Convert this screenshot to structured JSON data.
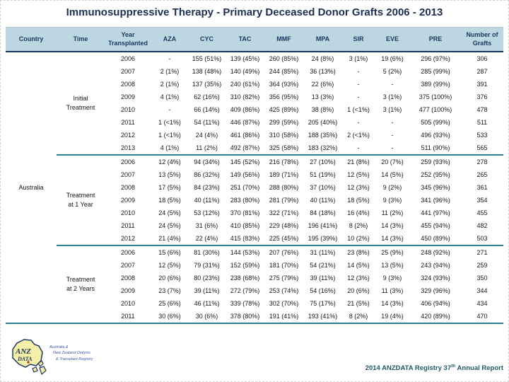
{
  "slide": {
    "title": "Immunosuppressive Therapy - Primary Deceased Donor Grafts 2006 - 2013"
  },
  "table": {
    "columns": [
      "Country",
      "Time",
      "Year Transplanted",
      "AZA",
      "CYC",
      "TAC",
      "MMF",
      "MPA",
      "SIR",
      "EVE",
      "PRE",
      "Number of Grafts"
    ],
    "country": "Australia",
    "sections": [
      {
        "time_lines": [
          "Initial",
          "Treatment"
        ],
        "rows": [
          [
            "2006",
            "-",
            "155 (51%)",
            "139 (45%)",
            "260 (85%)",
            "24 (8%)",
            "3 (1%)",
            "19 (6%)",
            "296 (97%)",
            "306"
          ],
          [
            "2007",
            "2 (1%)",
            "138 (48%)",
            "140 (49%)",
            "244 (85%)",
            "36 (13%)",
            "-",
            "5 (2%)",
            "285 (99%)",
            "287"
          ],
          [
            "2008",
            "2 (1%)",
            "137 (35%)",
            "240 (61%)",
            "364 (93%)",
            "22 (6%)",
            "-",
            "-",
            "389 (99%)",
            "391"
          ],
          [
            "2009",
            "4 (1%)",
            "62 (16%)",
            "310 (82%)",
            "356 (95%)",
            "13 (3%)",
            "-",
            "3 (1%)",
            "375 (100%)",
            "376"
          ],
          [
            "2010",
            "-",
            "66 (14%)",
            "409 (86%)",
            "425 (89%)",
            "38 (8%)",
            "1 (<1%)",
            "3 (1%)",
            "477 (100%)",
            "478"
          ],
          [
            "2011",
            "1 (<1%)",
            "54 (11%)",
            "446 (87%)",
            "299 (59%)",
            "205 (40%)",
            "-",
            "-",
            "505 (99%)",
            "511"
          ],
          [
            "2012",
            "1 (<1%)",
            "24 (4%)",
            "461 (86%)",
            "310 (58%)",
            "188 (35%)",
            "2 (<1%)",
            "-",
            "496 (93%)",
            "533"
          ],
          [
            "2013",
            "4 (1%)",
            "11 (2%)",
            "492 (87%)",
            "325 (58%)",
            "183 (32%)",
            "-",
            "-",
            "511 (90%)",
            "565"
          ]
        ]
      },
      {
        "time_lines": [
          "Treatment",
          "at 1 Year"
        ],
        "rows": [
          [
            "2006",
            "12 (4%)",
            "94 (34%)",
            "145 (52%)",
            "216 (78%)",
            "27 (10%)",
            "21 (8%)",
            "20 (7%)",
            "259 (93%)",
            "278"
          ],
          [
            "2007",
            "13 (5%)",
            "86 (32%)",
            "149 (56%)",
            "189 (71%)",
            "51 (19%)",
            "12 (5%)",
            "14 (5%)",
            "252 (95%)",
            "265"
          ],
          [
            "2008",
            "17 (5%)",
            "84 (23%)",
            "251 (70%)",
            "288 (80%)",
            "37 (10%)",
            "12 (3%)",
            "9 (2%)",
            "345 (96%)",
            "361"
          ],
          [
            "2009",
            "18 (5%)",
            "40 (11%)",
            "283 (80%)",
            "281 (79%)",
            "40 (11%)",
            "18 (5%)",
            "9 (3%)",
            "341 (96%)",
            "354"
          ],
          [
            "2010",
            "24 (5%)",
            "53 (12%)",
            "370 (81%)",
            "322 (71%)",
            "84 (18%)",
            "16 (4%)",
            "11 (2%)",
            "441 (97%)",
            "455"
          ],
          [
            "2011",
            "24 (5%)",
            "31 (6%)",
            "410 (85%)",
            "229 (48%)",
            "196 (41%)",
            "8 (2%)",
            "14 (3%)",
            "455 (94%)",
            "482"
          ],
          [
            "2012",
            "21 (4%)",
            "22 (4%)",
            "415 (83%)",
            "225 (45%)",
            "195 (39%)",
            "10 (2%)",
            "14 (3%)",
            "450 (89%)",
            "503"
          ]
        ]
      },
      {
        "time_lines": [
          "Treatment",
          "at 2 Years"
        ],
        "rows": [
          [
            "2006",
            "15 (6%)",
            "81 (30%)",
            "144 (53%)",
            "207 (76%)",
            "31 (11%)",
            "23 (8%)",
            "25 (9%)",
            "248 (92%)",
            "271"
          ],
          [
            "2007",
            "12 (5%)",
            "79 (31%)",
            "152 (59%)",
            "181 (70%)",
            "54 (21%)",
            "14 (5%)",
            "13 (5%)",
            "243 (94%)",
            "259"
          ],
          [
            "2008",
            "20 (6%)",
            "80 (23%)",
            "238 (68%)",
            "275 (79%)",
            "39 (11%)",
            "12 (3%)",
            "9 (3%)",
            "324 (93%)",
            "350"
          ],
          [
            "2009",
            "23 (7%)",
            "39 (11%)",
            "272 (79%)",
            "253 (74%)",
            "54 (16%)",
            "20 (6%)",
            "11 (3%)",
            "329 (96%)",
            "344"
          ],
          [
            "2010",
            "25 (6%)",
            "46 (11%)",
            "339 (78%)",
            "302 (70%)",
            "75 (17%)",
            "21 (5%)",
            "14 (3%)",
            "406 (94%)",
            "434"
          ],
          [
            "2011",
            "30 (6%)",
            "30 (6%)",
            "378 (80%)",
            "191 (41%)",
            "193 (41%)",
            "8 (2%)",
            "19 (4%)",
            "420 (89%)",
            "470"
          ]
        ]
      }
    ]
  },
  "footer": {
    "logo": {
      "map_text_top": "ANZ",
      "map_text_bottom": "DATA",
      "caption_lines": [
        "Australia &",
        "New Zealand Dialysis",
        "& Transplant Registry"
      ]
    },
    "report_prefix": "2014 ANZDATA Registry 37",
    "report_sup": "th",
    "report_suffix": " Annual Report"
  },
  "colors": {
    "header_bg": "#bdd7e2",
    "header_text": "#17375e",
    "divider_navy": "#17375e",
    "divider_teal": "#2e7f96",
    "title_text": "#1c2f52",
    "footer_text": "#1e5964",
    "logo_yellow": "#f4f0a8",
    "logo_navy": "#1f3864",
    "caption_blue": "#3b5ba5"
  }
}
